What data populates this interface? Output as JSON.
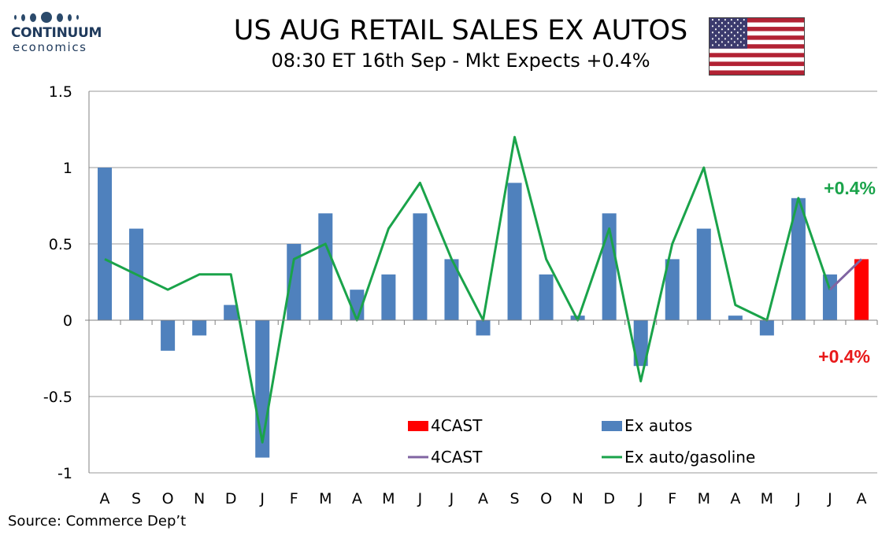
{
  "header": {
    "title": "US AUG RETAIL SALES EX AUTOS",
    "subtitle": "08:30 ET 16th Sep - Mkt Expects +0.4%"
  },
  "logo": {
    "name": "CONTINUUM",
    "sub": "economics"
  },
  "footer": {
    "source": "Source: Commerce Dep’t"
  },
  "flag": {
    "icon": "us-flag-icon"
  },
  "colors": {
    "bar_ex_autos": "#4f81bd",
    "bar_4cast": "#ff0000",
    "line_ex_auto_gas": "#1aa34a",
    "line_4cast": "#8064a2",
    "gridline": "#9a9a9a",
    "label_green": "#1aa34a",
    "label_red": "#e8191a"
  },
  "chart_data": {
    "type": "bar",
    "categories": [
      "A",
      "S",
      "O",
      "N",
      "D",
      "J",
      "F",
      "M",
      "A",
      "M",
      "J",
      "J",
      "A",
      "S",
      "O",
      "N",
      "D",
      "J",
      "F",
      "M",
      "A",
      "M",
      "J",
      "J",
      "A"
    ],
    "ylim": [
      -1,
      1.5
    ],
    "yticks": [
      -1,
      -0.5,
      0,
      0.5,
      1,
      1.5
    ],
    "ytick_labels": [
      "-1",
      "-0.5",
      "0",
      "0.5",
      "1",
      "1.5"
    ],
    "grid": true,
    "series": [
      {
        "name": "Ex autos",
        "type": "bar",
        "values": [
          1.0,
          0.6,
          -0.2,
          -0.1,
          0.1,
          -0.9,
          0.5,
          0.7,
          0.2,
          0.3,
          0.7,
          0.4,
          -0.1,
          0.9,
          0.3,
          0.03,
          0.7,
          -0.3,
          0.4,
          0.6,
          0.03,
          -0.1,
          0.8,
          0.3,
          null
        ]
      },
      {
        "name": "4CAST",
        "type": "bar",
        "values": [
          null,
          null,
          null,
          null,
          null,
          null,
          null,
          null,
          null,
          null,
          null,
          null,
          null,
          null,
          null,
          null,
          null,
          null,
          null,
          null,
          null,
          null,
          null,
          null,
          0.4
        ]
      },
      {
        "name": "Ex auto/gasoline",
        "type": "line",
        "values": [
          0.4,
          0.3,
          0.2,
          0.3,
          0.3,
          -0.8,
          0.4,
          0.5,
          0.0,
          0.6,
          0.9,
          0.4,
          0.0,
          1.2,
          0.4,
          0.0,
          0.6,
          -0.4,
          0.5,
          1.0,
          0.1,
          0.0,
          0.8,
          0.2,
          null
        ]
      },
      {
        "name": "4CAST",
        "type": "line",
        "values": [
          null,
          null,
          null,
          null,
          null,
          null,
          null,
          null,
          null,
          null,
          null,
          null,
          null,
          null,
          null,
          null,
          null,
          null,
          null,
          null,
          null,
          null,
          null,
          0.2,
          0.4
        ]
      }
    ],
    "legend_placement": "bottom-center",
    "annotations": [
      {
        "text": "+0.4%",
        "series": "Ex auto/gasoline",
        "color": "green"
      },
      {
        "text": "+0.4%",
        "series": "Ex autos",
        "color": "red"
      }
    ]
  }
}
